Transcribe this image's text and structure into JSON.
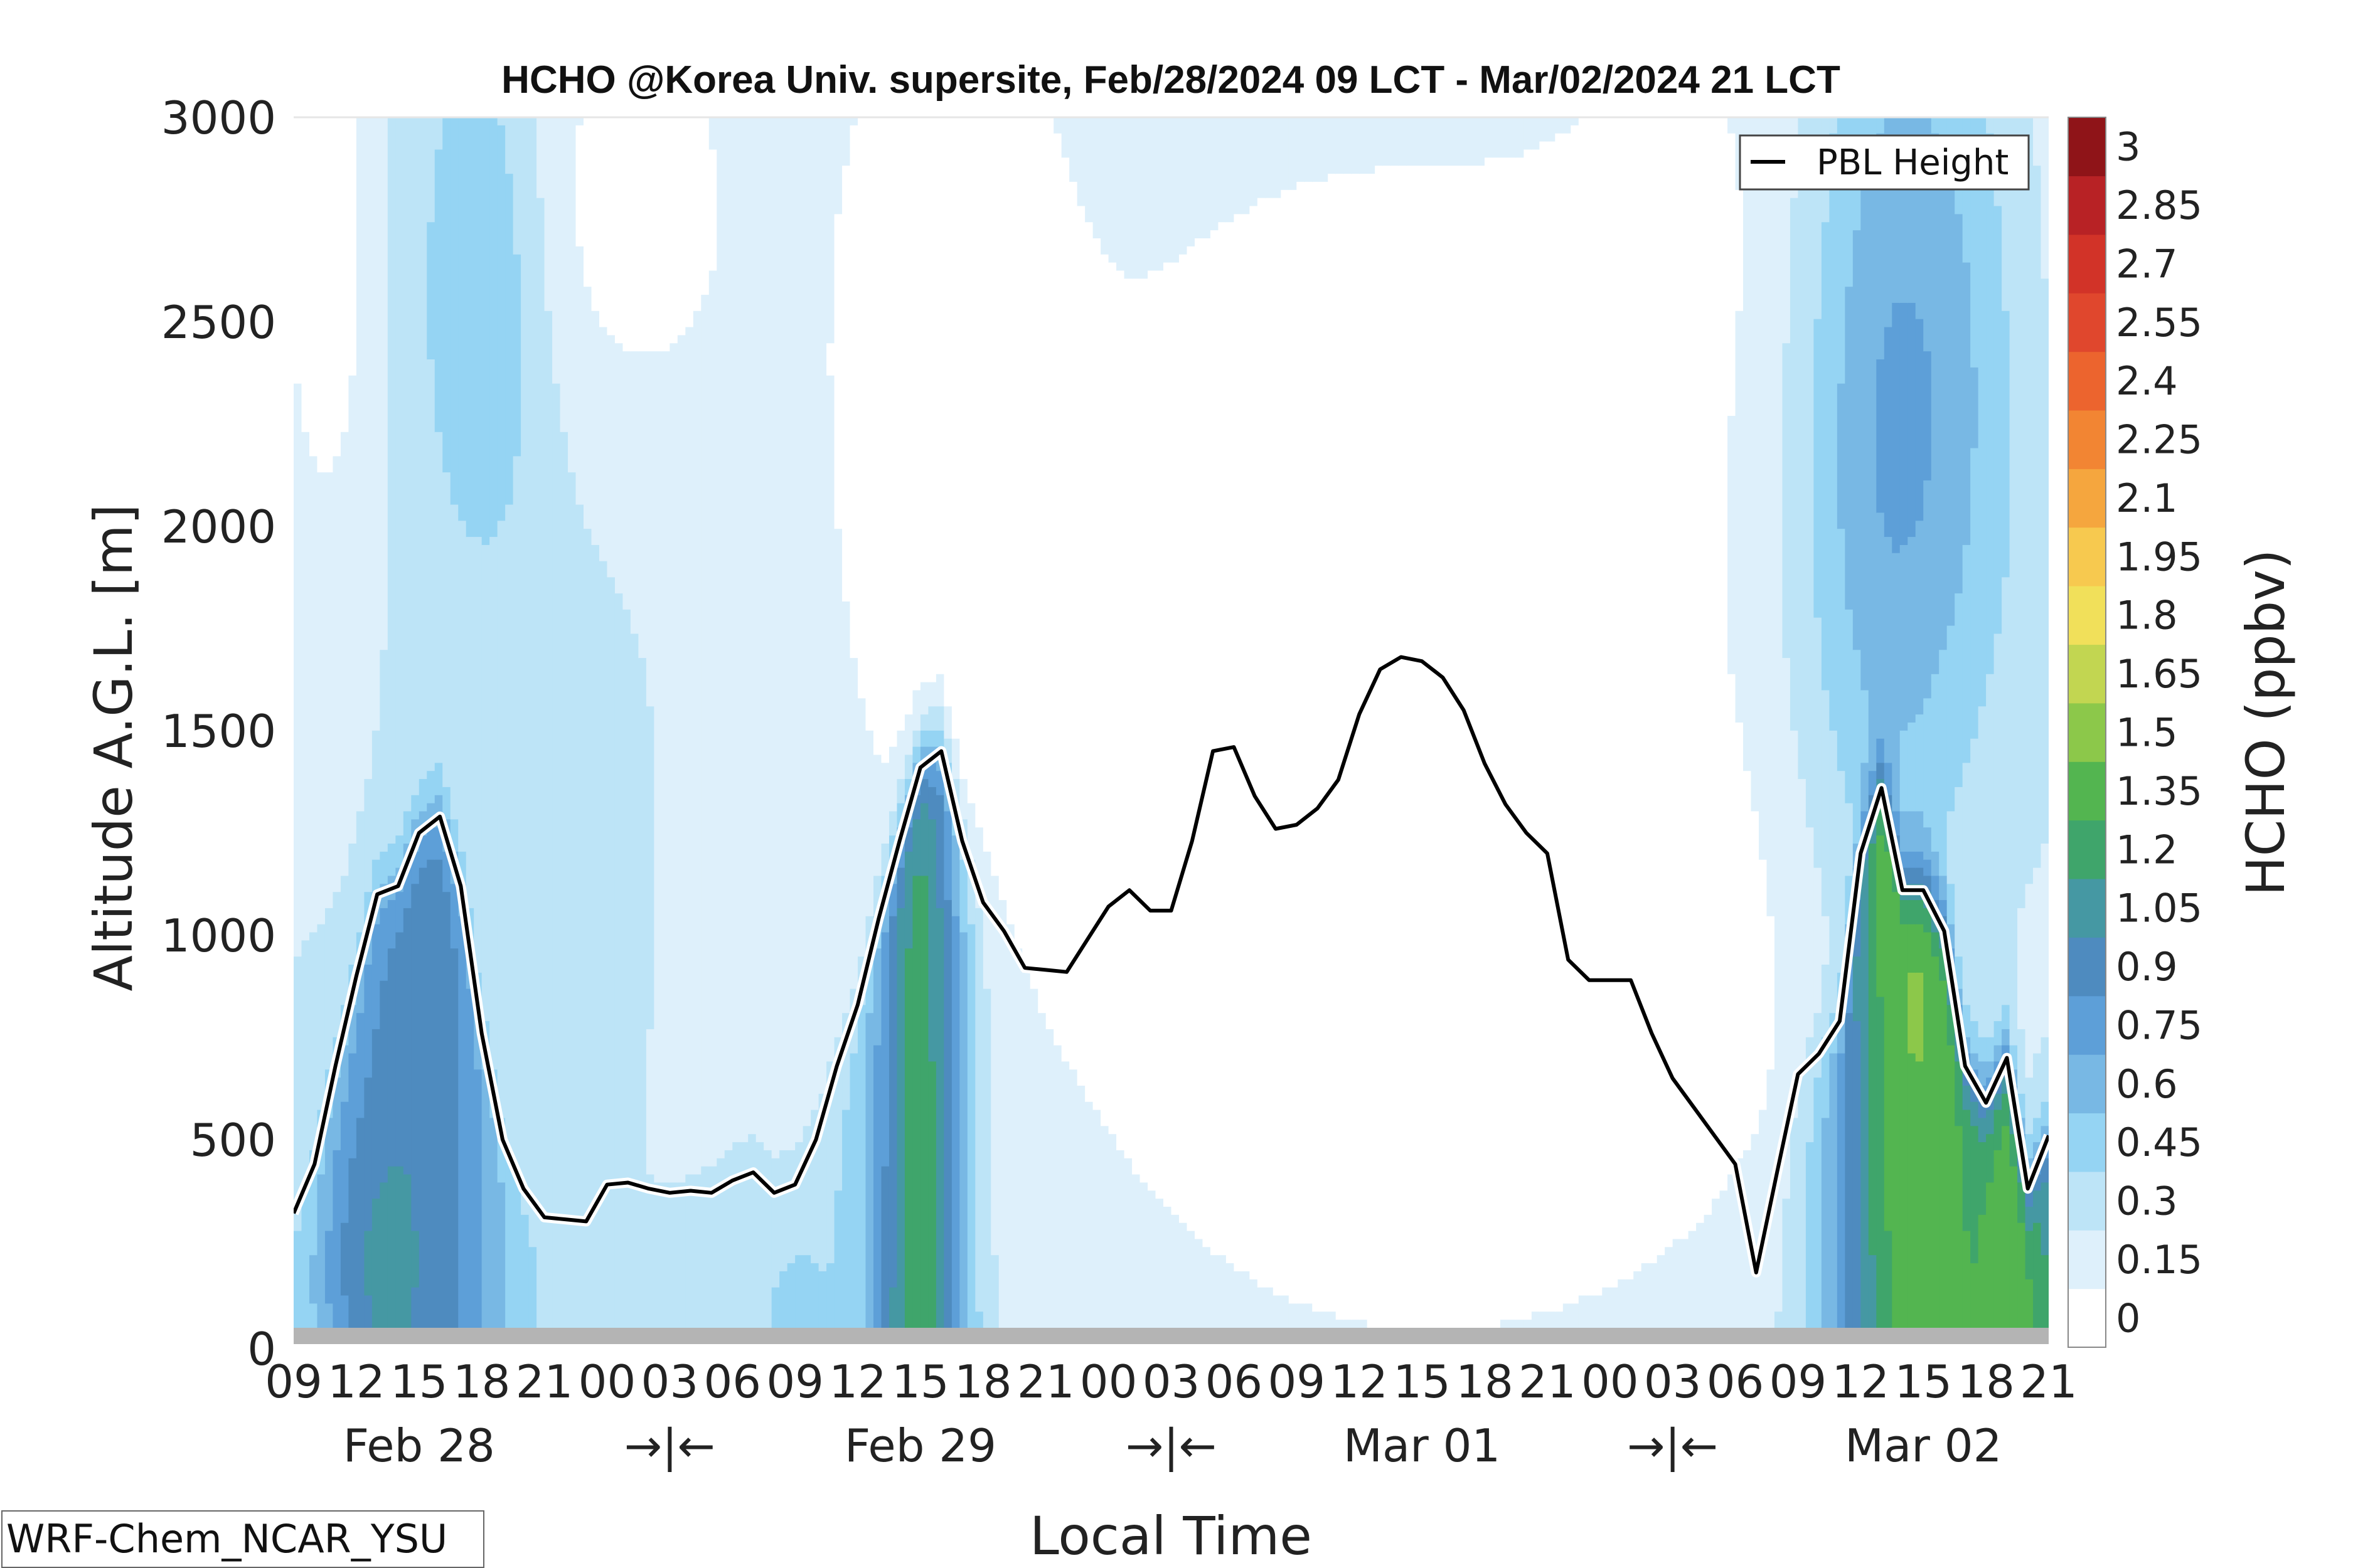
{
  "chart_data": {
    "type": "heatmap",
    "title": "HCHO @Korea Univ. supersite, Feb/28/2024 09 LCT - Mar/02/2024 21 LCT",
    "xlabel": "Local Time",
    "ylabel": "Altitude A.G.L. [m]",
    "ylim": [
      0,
      3000
    ],
    "y_ticks": [
      "0",
      "500",
      "1000",
      "1500",
      "2000",
      "2500",
      "3000"
    ],
    "x_tick_labels": [
      "09",
      "12",
      "15",
      "18",
      "21",
      "00",
      "03",
      "06",
      "09",
      "12",
      "15",
      "18",
      "21",
      "00",
      "03",
      "06",
      "09",
      "12",
      "15",
      "18",
      "21",
      "00",
      "03",
      "06",
      "09",
      "12",
      "15",
      "18",
      "21"
    ],
    "date_labels": [
      "Feb 28",
      "→|←",
      "Feb 29",
      "→|←",
      "Mar 01",
      "→|←",
      "Mar 02"
    ],
    "colorbar": {
      "label": "HCHO (ppbv)",
      "ticks": [
        "3",
        "2.85",
        "2.7",
        "2.55",
        "2.4",
        "2.25",
        "2.1",
        "1.95",
        "1.8",
        "1.65",
        "1.5",
        "1.35",
        "1.2",
        "1.05",
        "0.9",
        "0.75",
        "0.6",
        "0.45",
        "0.3",
        "0.15",
        "0"
      ],
      "colors": [
        "#ffffff",
        "#def0fb",
        "#bde4f7",
        "#95d4f3",
        "#78b8e4",
        "#5d9fd8",
        "#4e8bbf",
        "#4598a3",
        "#3fa56b",
        "#53b550",
        "#8cc84a",
        "#c2d651",
        "#f1e05a",
        "#f7c94f",
        "#f5a63e",
        "#f28533",
        "#ec642e",
        "#e0472d",
        "#d23328",
        "#b82225",
        "#8f1418"
      ]
    },
    "legend": {
      "entries": [
        "PBL Height"
      ],
      "placement": "top-right"
    },
    "model_label": "WRF-Chem_NCAR_YSU",
    "x_hours": [
      0,
      1,
      2,
      3,
      4,
      5,
      6,
      7,
      8,
      9,
      10,
      11,
      12,
      13,
      14,
      15,
      16,
      17,
      18,
      19,
      20,
      21,
      22,
      23,
      24,
      25,
      26,
      27,
      28,
      29,
      30,
      31,
      32,
      33,
      34,
      35,
      36,
      37,
      38,
      39,
      40,
      41,
      42,
      43,
      44,
      45,
      46,
      47,
      48,
      49,
      50,
      51,
      52,
      53,
      54,
      55,
      56,
      57,
      58,
      59,
      60,
      61,
      62,
      63,
      64,
      65,
      66,
      67,
      68,
      69,
      70,
      71,
      72,
      73,
      74,
      75,
      76,
      77,
      78,
      79,
      80,
      81,
      82,
      83,
      84
    ],
    "pbl_height_m": [
      320,
      440,
      680,
      900,
      1100,
      1120,
      1250,
      1290,
      1120,
      760,
      500,
      380,
      310,
      305,
      300,
      390,
      395,
      380,
      370,
      375,
      370,
      400,
      420,
      370,
      390,
      500,
      680,
      830,
      1040,
      1230,
      1410,
      1450,
      1230,
      1080,
      1010,
      920,
      915,
      910,
      990,
      1070,
      1110,
      1060,
      1060,
      1230,
      1450,
      1460,
      1340,
      1260,
      1270,
      1310,
      1380,
      1540,
      1650,
      1680,
      1670,
      1630,
      1550,
      1420,
      1320,
      1250,
      1200,
      940,
      890,
      890,
      890,
      760,
      650,
      580,
      510,
      440,
      175,
      420,
      660,
      710,
      790,
      1200,
      1360,
      1110,
      1110,
      1010,
      680,
      590,
      700,
      380,
      510
    ],
    "series": [
      {
        "name": "PBL Height",
        "values_ref": "pbl_height_m"
      }
    ]
  }
}
